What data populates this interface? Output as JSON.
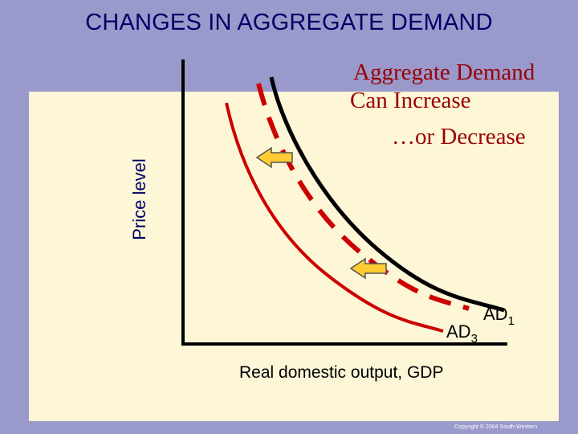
{
  "title": "CHANGES IN AGGREGATE DEMAND",
  "axes": {
    "ylabel": "Price level",
    "xlabel": "Real domestic output, GDP"
  },
  "annotation": {
    "line1": "Aggregate Demand",
    "line2": "Can Increase",
    "line3": "…or Decrease"
  },
  "curves": {
    "ad1": {
      "main": "AD",
      "sub": "1"
    },
    "ad3": {
      "main": "AD",
      "sub": "3"
    }
  },
  "copyright": "Copyright © 2004 South-Western",
  "colors": {
    "background": "#9999cc",
    "panel": "#fdf6d7",
    "title": "#000066",
    "axis": "#000000",
    "ad1_curve": "#000000",
    "ad2_curve": "#cc0000",
    "ad3_curve": "#cc0000",
    "annotation": "#990000",
    "arrow_fill": "#ffcc33",
    "arrow_stroke": "#555555"
  },
  "icons": {
    "shift_arrow": "left-arrow-icon"
  }
}
